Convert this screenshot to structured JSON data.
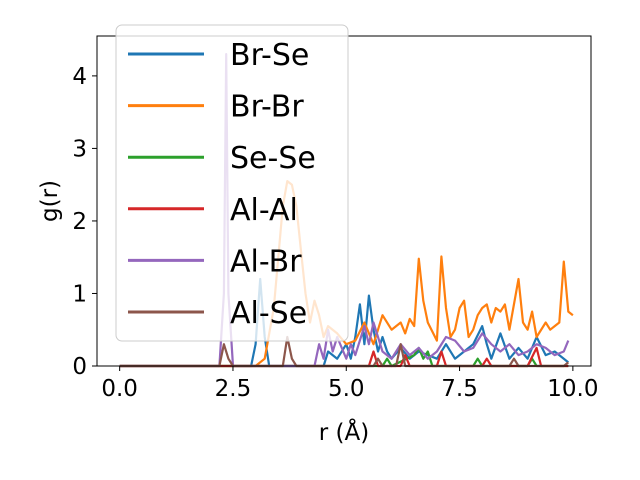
{
  "chart_data": {
    "type": "line",
    "title": "",
    "xlabel": "r (Å)",
    "ylabel": "g(r)",
    "xlim": [
      -0.5,
      10.4
    ],
    "ylim": [
      0,
      4.55
    ],
    "xticks": [
      0.0,
      2.5,
      5.0,
      7.5,
      10.0
    ],
    "xtick_labels": [
      "0.0",
      "2.5",
      "5.0",
      "7.5",
      "10.0"
    ],
    "yticks": [
      0,
      1,
      2,
      3,
      4
    ],
    "ytick_labels": [
      "0",
      "1",
      "2",
      "3",
      "4"
    ],
    "grid": false,
    "legend_position": "top-left",
    "series": [
      {
        "name": "Br-Se",
        "color": "#1f77b4",
        "points": [
          [
            0,
            0
          ],
          [
            2.9,
            0
          ],
          [
            3.0,
            0.3
          ],
          [
            3.1,
            1.2
          ],
          [
            3.2,
            0.4
          ],
          [
            3.3,
            0
          ],
          [
            4.5,
            0
          ],
          [
            4.6,
            0.2
          ],
          [
            4.8,
            0.1
          ],
          [
            5.0,
            0.3
          ],
          [
            5.1,
            0.1
          ],
          [
            5.2,
            0.4
          ],
          [
            5.3,
            0.85
          ],
          [
            5.4,
            0.3
          ],
          [
            5.5,
            0.97
          ],
          [
            5.6,
            0.5
          ],
          [
            5.7,
            0.2
          ],
          [
            5.8,
            0.4
          ],
          [
            5.9,
            0.2
          ],
          [
            6.0,
            0.1
          ],
          [
            6.2,
            0.25
          ],
          [
            6.4,
            0.1
          ],
          [
            6.6,
            0.2
          ],
          [
            6.8,
            0.15
          ],
          [
            7.0,
            0.1
          ],
          [
            7.2,
            0.3
          ],
          [
            7.4,
            0.1
          ],
          [
            7.6,
            0.2
          ],
          [
            7.8,
            0.3
          ],
          [
            8.0,
            0.55
          ],
          [
            8.1,
            0.3
          ],
          [
            8.2,
            0.1
          ],
          [
            8.4,
            0.45
          ],
          [
            8.6,
            0.1
          ],
          [
            8.8,
            0.25
          ],
          [
            9.0,
            0.1
          ],
          [
            9.2,
            0.4
          ],
          [
            9.4,
            0.15
          ],
          [
            9.6,
            0.2
          ],
          [
            9.8,
            0.1
          ],
          [
            9.9,
            0.05
          ]
        ]
      },
      {
        "name": "Br-Br",
        "color": "#ff7f0e",
        "points": [
          [
            0,
            0
          ],
          [
            3.0,
            0
          ],
          [
            3.2,
            0.1
          ],
          [
            3.4,
            0.8
          ],
          [
            3.5,
            1.5
          ],
          [
            3.6,
            2.2
          ],
          [
            3.7,
            2.55
          ],
          [
            3.8,
            2.5
          ],
          [
            3.9,
            2.2
          ],
          [
            4.0,
            1.6
          ],
          [
            4.1,
            1.0
          ],
          [
            4.2,
            0.6
          ],
          [
            4.3,
            0.9
          ],
          [
            4.4,
            0.7
          ],
          [
            4.5,
            0.4
          ],
          [
            4.6,
            0.55
          ],
          [
            4.8,
            0.45
          ],
          [
            5.0,
            0.3
          ],
          [
            5.2,
            0.35
          ],
          [
            5.4,
            0.6
          ],
          [
            5.6,
            0.3
          ],
          [
            5.8,
            0.7
          ],
          [
            6.0,
            0.5
          ],
          [
            6.2,
            0.6
          ],
          [
            6.3,
            0.45
          ],
          [
            6.4,
            0.65
          ],
          [
            6.5,
            0.55
          ],
          [
            6.6,
            1.48
          ],
          [
            6.7,
            0.9
          ],
          [
            6.8,
            0.6
          ],
          [
            7.0,
            0.35
          ],
          [
            7.1,
            1.51
          ],
          [
            7.2,
            0.8
          ],
          [
            7.3,
            0.4
          ],
          [
            7.4,
            0.5
          ],
          [
            7.5,
            0.8
          ],
          [
            7.6,
            0.9
          ],
          [
            7.7,
            0.4
          ],
          [
            7.8,
            0.5
          ],
          [
            7.9,
            0.7
          ],
          [
            8.0,
            0.8
          ],
          [
            8.1,
            0.85
          ],
          [
            8.2,
            0.6
          ],
          [
            8.3,
            0.8
          ],
          [
            8.4,
            0.75
          ],
          [
            8.5,
            0.85
          ],
          [
            8.6,
            0.5
          ],
          [
            8.8,
            1.2
          ],
          [
            8.9,
            0.6
          ],
          [
            9.0,
            0.5
          ],
          [
            9.1,
            0.75
          ],
          [
            9.2,
            0.4
          ],
          [
            9.4,
            0.6
          ],
          [
            9.5,
            0.5
          ],
          [
            9.6,
            0.55
          ],
          [
            9.7,
            0.6
          ],
          [
            9.8,
            1.44
          ],
          [
            9.9,
            0.75
          ],
          [
            10.0,
            0.7
          ]
        ]
      },
      {
        "name": "Se-Se",
        "color": "#2ca02c",
        "points": [
          [
            0,
            0
          ],
          [
            5.8,
            0
          ],
          [
            5.9,
            0.1
          ],
          [
            6.0,
            0
          ],
          [
            6.5,
            0.15
          ],
          [
            6.6,
            0.25
          ],
          [
            6.7,
            0.1
          ],
          [
            6.8,
            0.2
          ],
          [
            6.9,
            0
          ],
          [
            7.8,
            0
          ],
          [
            7.9,
            0.1
          ],
          [
            8.0,
            0
          ],
          [
            9.0,
            0
          ],
          [
            9.1,
            0.1
          ],
          [
            9.2,
            0
          ],
          [
            9.9,
            0
          ]
        ]
      },
      {
        "name": "Al-Al",
        "color": "#d62728",
        "points": [
          [
            0,
            0
          ],
          [
            5.5,
            0
          ],
          [
            5.6,
            0.2
          ],
          [
            5.7,
            0
          ],
          [
            6.2,
            0
          ],
          [
            6.3,
            0.15
          ],
          [
            6.4,
            0
          ],
          [
            7.0,
            0
          ],
          [
            7.1,
            0.2
          ],
          [
            7.2,
            0
          ],
          [
            8.0,
            0
          ],
          [
            8.1,
            0.1
          ],
          [
            8.2,
            0
          ],
          [
            9.0,
            0
          ],
          [
            9.2,
            0.25
          ],
          [
            9.3,
            0
          ],
          [
            9.9,
            0
          ]
        ]
      },
      {
        "name": "Al-Br",
        "color": "#9467bd",
        "points": [
          [
            0,
            0
          ],
          [
            2.2,
            0
          ],
          [
            2.3,
            1.0
          ],
          [
            2.35,
            4.3
          ],
          [
            2.4,
            1.0
          ],
          [
            2.5,
            0
          ],
          [
            4.3,
            0
          ],
          [
            4.4,
            0.3
          ],
          [
            4.5,
            0.1
          ],
          [
            4.6,
            0.5
          ],
          [
            4.7,
            0.2
          ],
          [
            4.8,
            0.4
          ],
          [
            5.0,
            0.1
          ],
          [
            5.1,
            0.3
          ],
          [
            5.2,
            0.15
          ],
          [
            5.4,
            0.55
          ],
          [
            5.5,
            0.3
          ],
          [
            5.6,
            0.6
          ],
          [
            5.8,
            0.2
          ],
          [
            6.0,
            0.1
          ],
          [
            6.2,
            0.3
          ],
          [
            6.4,
            0.15
          ],
          [
            6.6,
            0.25
          ],
          [
            6.8,
            0.1
          ],
          [
            7.0,
            0.2
          ],
          [
            7.2,
            0.4
          ],
          [
            7.4,
            0.35
          ],
          [
            7.6,
            0.2
          ],
          [
            7.8,
            0.25
          ],
          [
            8.0,
            0.45
          ],
          [
            8.2,
            0.3
          ],
          [
            8.4,
            0.2
          ],
          [
            8.6,
            0.3
          ],
          [
            8.8,
            0.15
          ],
          [
            9.0,
            0.2
          ],
          [
            9.2,
            0.3
          ],
          [
            9.4,
            0.25
          ],
          [
            9.6,
            0.15
          ],
          [
            9.8,
            0.2
          ],
          [
            9.9,
            0.35
          ]
        ]
      },
      {
        "name": "Al-Se",
        "color": "#8c564b",
        "points": [
          [
            0,
            0
          ],
          [
            2.2,
            0
          ],
          [
            2.3,
            0.3
          ],
          [
            2.4,
            0.1
          ],
          [
            2.5,
            0
          ],
          [
            3.6,
            0
          ],
          [
            3.7,
            0.4
          ],
          [
            3.8,
            0.1
          ],
          [
            3.9,
            0
          ],
          [
            5.6,
            0
          ],
          [
            5.7,
            0.1
          ],
          [
            5.8,
            0
          ],
          [
            6.1,
            0
          ],
          [
            6.2,
            0.3
          ],
          [
            6.3,
            0
          ],
          [
            8.6,
            0
          ],
          [
            8.7,
            0.1
          ],
          [
            8.8,
            0
          ],
          [
            9.8,
            0
          ],
          [
            9.9,
            0.05
          ]
        ]
      }
    ]
  }
}
